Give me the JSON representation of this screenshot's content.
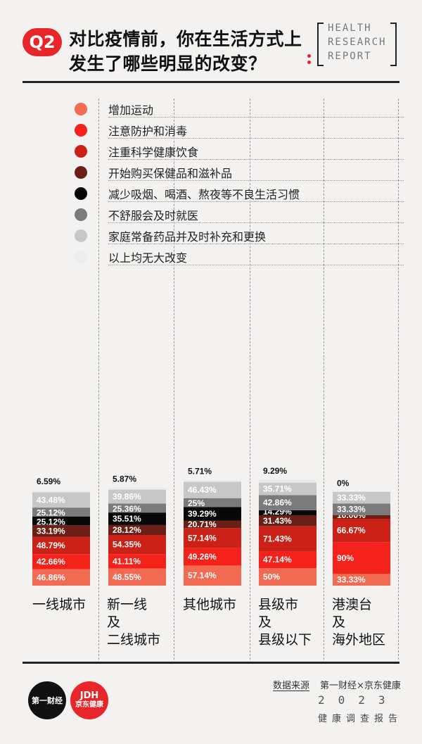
{
  "header": {
    "badge": "Q2",
    "title_line1": "对比疫情前，你在生活方式上",
    "title_line2": "发生了哪些明显的改变？",
    "report_tag": [
      "HEALTH",
      "RESEARCH",
      "REPORT"
    ]
  },
  "colors": {
    "accent": "#e8262a",
    "series": [
      "#f26a52",
      "#f5221b",
      "#cc2116",
      "#6b1f16",
      "#080808",
      "#7a7a7a",
      "#c7c7c7",
      "#ededed"
    ]
  },
  "chart_data": {
    "type": "bar",
    "stacked": true,
    "categories": [
      "一线城市",
      "新一线及二线城市",
      "其他城市",
      "县级市及县级以下",
      "港澳台及海外地区"
    ],
    "category_label_lines": [
      [
        "一线城市"
      ],
      [
        "新一线",
        "及",
        "二线城市"
      ],
      [
        "其他城市"
      ],
      [
        "县级市",
        "及",
        "县级以下"
      ],
      [
        "港澳台",
        "及",
        "海外地区"
      ]
    ],
    "series": [
      {
        "name": "增加运动",
        "values": [
          46.86,
          48.55,
          57.14,
          50,
          33.33
        ],
        "labels": [
          "46.86%",
          "48.55%",
          "57.14%",
          "50%",
          "33.33%"
        ]
      },
      {
        "name": "注意防护和消毒",
        "values": [
          42.66,
          41.11,
          49.26,
          47.14,
          90
        ],
        "labels": [
          "42.66%",
          "41.11%",
          "49.26%",
          "47.14%",
          "90%"
        ]
      },
      {
        "name": "注重科学健康饮食",
        "values": [
          48.79,
          54.35,
          57.14,
          71.43,
          66.67
        ],
        "labels": [
          "48.79%",
          "54.35%",
          "57.14%",
          "71.43%",
          "66.67%"
        ]
      },
      {
        "name": "开始购买保健品和滋补品",
        "values": [
          33.19,
          28.12,
          20.71,
          31.43,
          10
        ],
        "labels": [
          "33.19%",
          "28.12%",
          "20.71%",
          "31.43%",
          "10.00%"
        ]
      },
      {
        "name": "减少吸烟、喝酒、熬夜等不良生活习惯",
        "values": [
          25.12,
          35.51,
          39.29,
          14.29,
          0
        ],
        "labels": [
          "25.12%",
          "35.51%",
          "39.29%",
          "14.29%",
          ""
        ]
      },
      {
        "name": "不舒服会及时就医",
        "values": [
          25.12,
          25.36,
          25,
          42.86,
          33.33
        ],
        "labels": [
          "25.12%",
          "25.36%",
          "25%",
          "42.86%",
          "33.33%"
        ]
      },
      {
        "name": "家庭常备药品并及时补充和更换",
        "values": [
          43.48,
          39.86,
          46.43,
          35.71,
          33.33
        ],
        "labels": [
          "43.48%",
          "39.86%",
          "46.43%",
          "35.71%",
          "33.33%"
        ]
      },
      {
        "name": "以上均无大改变",
        "values": [
          6.59,
          5.87,
          5.71,
          9.29,
          0
        ],
        "labels": [
          "6.59%",
          "5.87%",
          "5.71%",
          "9.29%",
          "0%"
        ]
      }
    ],
    "legend_position": "top",
    "grid": false
  },
  "footer": {
    "source_label": "数据来源",
    "source_value": "第一财经×京东健康",
    "year": "2023",
    "report_subtitle": "健康调查报告",
    "logo_yicai": "第一财经",
    "logo_jdh_top": "JDH",
    "logo_jdh_bottom": "京东健康"
  }
}
